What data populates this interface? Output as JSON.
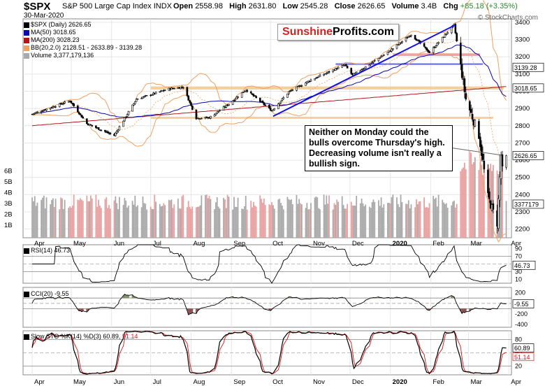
{
  "header": {
    "symbol": "$SPX",
    "description": "S&P 500 Large Cap Index",
    "exchange": "INDX",
    "date": "30-Mar-2020",
    "open_label": "Open",
    "open": "2558.98",
    "high_label": "High",
    "high": "2631.80",
    "low_label": "Low",
    "low": "2545.28",
    "close_label": "Close",
    "close": "2626.65",
    "volume_label": "Volume",
    "volume": "3.4B",
    "chg_label": "Chg",
    "chg": "+85.18 (+3.35%)",
    "credit": "© StockCharts.com"
  },
  "watermark": {
    "part1": "Sunshine",
    "part2": "Profits",
    "part3": ".com"
  },
  "annotation": "Neither on Monday could the bulls overcome Thursday's high. Decreasing volume isn't really a bullish sign.",
  "colors": {
    "price_candles": "#000000",
    "ma50": "#0a0ab0",
    "ma200": "#b01818",
    "bb": "#f0a060",
    "volume": "#aaaaaa",
    "volume_down": "#e8a0a0",
    "trendline": "#1010e0",
    "orange_zone": "#f2c88a",
    "red_zone": "#f09090",
    "blue_zone": "#6060ff",
    "rsi": "#000000",
    "cci_fill_pos": "#7a8a5a",
    "cci_fill_neg": "#8a4a4a",
    "sto_k": "#000000",
    "sto_d": "#e01010"
  },
  "chart_data": [
    {
      "type": "candlestick",
      "name": "$SPX (Daily)",
      "legend": [
        "$SPX (Daily) 2626.65",
        "MA(50) 3018.65",
        "MA(200) 3028.23",
        "BB(20,2.0) 2128.51 - 2633.89 - 3139.28",
        "Volume 3,377,179,136"
      ],
      "x_ticks": [
        "Apr",
        "May",
        "Jun",
        "Jul",
        "Aug",
        "Sep",
        "Oct",
        "Nov",
        "Dec",
        "2020",
        "Feb",
        "Mar",
        "Apr"
      ],
      "y_ticks": [
        2200,
        2300,
        2400,
        2500,
        2600,
        2700,
        2800,
        2900,
        3000,
        3100,
        3200,
        3300,
        3400
      ],
      "ylim": [
        2150,
        3420
      ],
      "volume_ticks": [
        "1B",
        "2B",
        "3B",
        "4B",
        "5B",
        "6B"
      ],
      "price_labels": [
        "3139.28",
        "3018.65",
        "2626.65",
        "3377179"
      ],
      "close_points": [
        [
          "2019-04-01",
          2867
        ],
        [
          "2019-04-15",
          2905
        ],
        [
          "2019-04-30",
          2945
        ],
        [
          "2019-05-13",
          2812
        ],
        [
          "2019-05-31",
          2752
        ],
        [
          "2019-06-03",
          2744
        ],
        [
          "2019-06-20",
          2954
        ],
        [
          "2019-07-15",
          3014
        ],
        [
          "2019-07-26",
          3025
        ],
        [
          "2019-08-05",
          2844
        ],
        [
          "2019-08-15",
          2847
        ],
        [
          "2019-08-30",
          2926
        ],
        [
          "2019-09-12",
          3009
        ],
        [
          "2019-10-02",
          2887
        ],
        [
          "2019-10-15",
          2996
        ],
        [
          "2019-11-01",
          3066
        ],
        [
          "2019-11-27",
          3153
        ],
        [
          "2019-12-03",
          3093
        ],
        [
          "2019-12-31",
          3231
        ],
        [
          "2020-01-17",
          3330
        ],
        [
          "2020-01-31",
          3225
        ],
        [
          "2020-02-19",
          3386
        ],
        [
          "2020-02-28",
          2954
        ],
        [
          "2020-03-09",
          2746
        ],
        [
          "2020-03-16",
          2386
        ],
        [
          "2020-03-23",
          2237
        ],
        [
          "2020-03-26",
          2630
        ],
        [
          "2020-03-27",
          2541
        ],
        [
          "2020-03-30",
          2627
        ]
      ]
    },
    {
      "type": "line",
      "name": "RSI(14)",
      "legend": "RSI(14) 46.73",
      "y_ticks": [
        10,
        30,
        50,
        70,
        90
      ],
      "ylim": [
        0,
        100
      ],
      "last_value": "46.73"
    },
    {
      "type": "line",
      "name": "CCI(20)",
      "legend": "CCI(20) -9.55",
      "y_ticks": [
        -400,
        -200,
        0,
        200
      ],
      "ylim": [
        -450,
        300
      ],
      "last_value": "-9.55"
    },
    {
      "type": "line",
      "name": "Slow STO",
      "legend_k": "Slow STO %K(14) %D(3) 60.89,",
      "legend_d": "51.14",
      "y_ticks": [
        20,
        50,
        80
      ],
      "ylim": [
        0,
        100
      ],
      "k_value": "60.89",
      "d_value": "51.14"
    }
  ]
}
